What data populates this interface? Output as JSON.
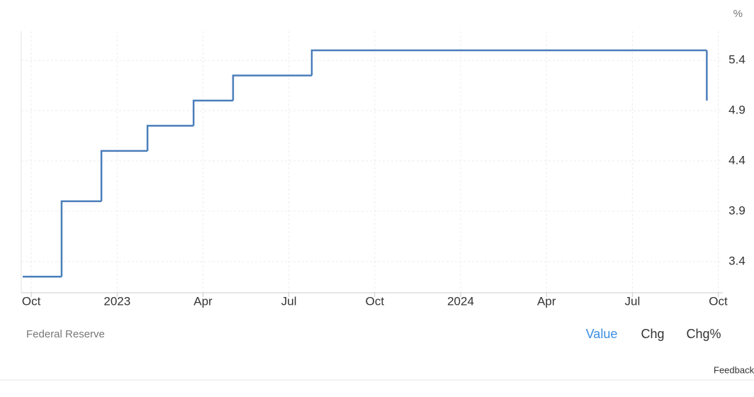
{
  "chart_data": {
    "type": "step-line",
    "unit": "%",
    "x": [
      -0.3,
      1.06,
      2.45,
      4.06,
      5.67,
      7.05,
      9.8,
      23.6
    ],
    "series": [
      {
        "color": "#4a7ebb",
        "values": [
          3.25,
          4.0,
          4.5,
          4.75,
          5.0,
          5.25,
          5.5,
          5.0
        ]
      }
    ],
    "xlim": [
      -0.35,
      24.16
    ],
    "xticks": [
      {
        "value": 0,
        "label": "Oct"
      },
      {
        "value": 3,
        "label": "2023"
      },
      {
        "value": 6,
        "label": "Apr"
      },
      {
        "value": 9,
        "label": "Jul"
      },
      {
        "value": 12,
        "label": "Oct"
      },
      {
        "value": 15,
        "label": "2024"
      },
      {
        "value": 18,
        "label": "Apr"
      },
      {
        "value": 21,
        "label": "Jul"
      },
      {
        "value": 24,
        "label": "Oct"
      }
    ],
    "ylim": [
      3.09,
      5.69
    ],
    "yticks": [
      3.4,
      3.9,
      4.4,
      4.9,
      5.4
    ],
    "grid": true
  },
  "source": "Federal Reserve",
  "tabs": [
    "Value",
    "Chg",
    "Chg%"
  ],
  "feedback": "Feedback"
}
